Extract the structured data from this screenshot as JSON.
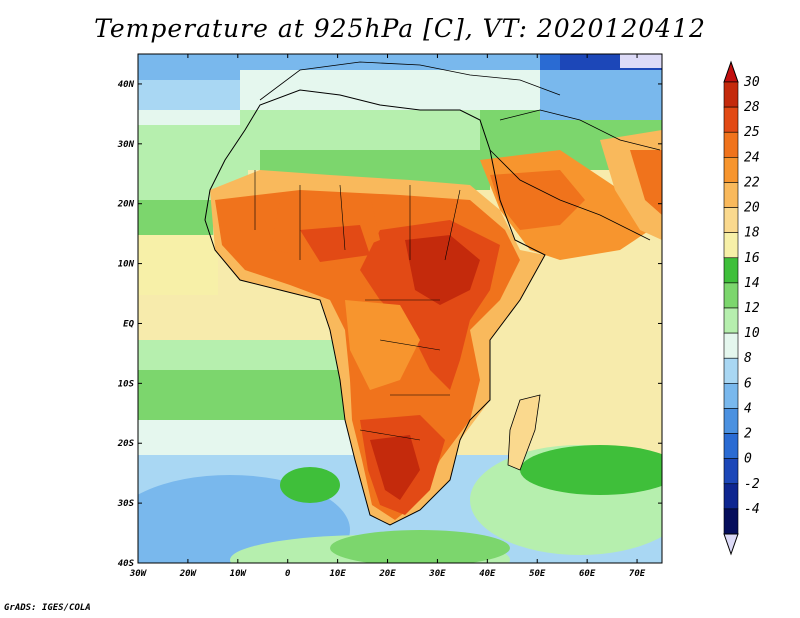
{
  "title": "Temperature at 925hPa [C], VT: 2020120412",
  "credit": "GrADS: IGES/COLA",
  "map": {
    "variable": "Temperature at 925hPa",
    "units": "C",
    "valid_time": "2020120412",
    "lon_range": [
      -30,
      75
    ],
    "lat_range": [
      -40,
      45
    ],
    "lon_ticks": [
      "30W",
      "20W",
      "10W",
      "0",
      "10E",
      "20E",
      "30E",
      "40E",
      "50E",
      "60E",
      "70E"
    ],
    "lon_tick_values": [
      -30,
      -20,
      -10,
      0,
      10,
      20,
      30,
      40,
      50,
      60,
      70
    ],
    "lat_ticks": [
      "40S",
      "30S",
      "20S",
      "10S",
      "EQ",
      "10N",
      "20N",
      "30N",
      "40N"
    ],
    "lat_tick_values": [
      -40,
      -30,
      -20,
      -10,
      0,
      10,
      20,
      30,
      40
    ]
  },
  "colorbar": {
    "labels": [
      "30",
      "28",
      "25",
      "24",
      "22",
      "20",
      "18",
      "16",
      "14",
      "12",
      "10",
      "8",
      "6",
      "4",
      "2",
      "0",
      "-2",
      "-4"
    ],
    "colors": [
      "#c42a0c",
      "#e24a15",
      "#f0731c",
      "#f7952e",
      "#f9b95c",
      "#fad98e",
      "#f7f0a8",
      "#3fbf3a",
      "#7cd66d",
      "#b6efae",
      "#e5f7ee",
      "#a9d7f3",
      "#79b8ed",
      "#4b91e0",
      "#2a6bd3",
      "#1c47b8",
      "#0e2690",
      "#060e5c"
    ],
    "overflow_high_color": "#c20f0f",
    "overflow_low_color": "#dcdaf7"
  }
}
